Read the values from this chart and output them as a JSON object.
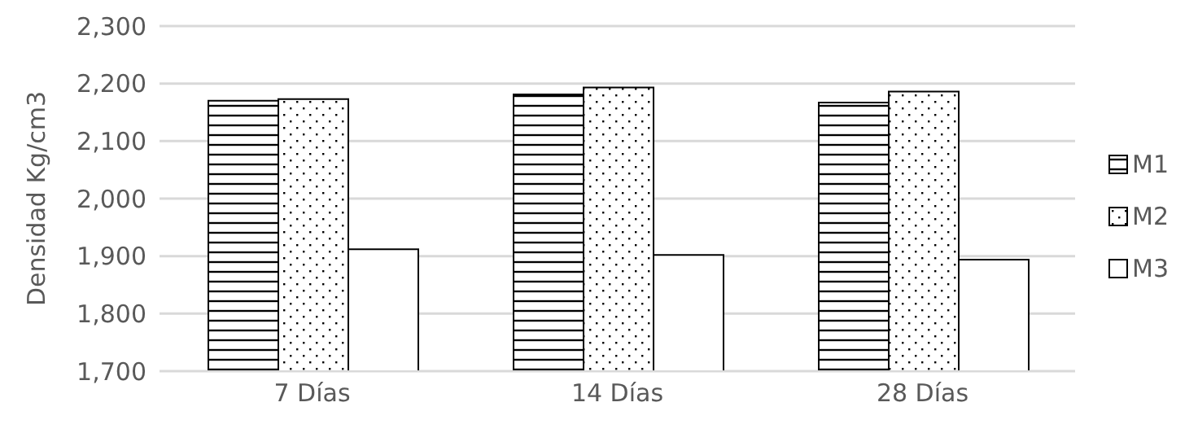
{
  "chart_data": {
    "type": "bar",
    "ylabel": "Densidad Kg/cm3",
    "categories": [
      "7 Días",
      "14 Días",
      "28 Días"
    ],
    "series": [
      {
        "name": "M1",
        "color": "#000000",
        "values": [
          2170,
          2181,
          2167
        ]
      },
      {
        "name": "M2",
        "color": "#000000",
        "values": [
          2173,
          2193,
          2186
        ]
      },
      {
        "name": "M3",
        "color": "#ffffff",
        "values": [
          1912,
          1902,
          1894
        ]
      }
    ],
    "ylim": [
      1700,
      2300
    ],
    "yticks": [
      {
        "value": 1700,
        "label": "1,700"
      },
      {
        "value": 1800,
        "label": "1,800"
      },
      {
        "value": 1900,
        "label": "1,900"
      },
      {
        "value": 2000,
        "label": "2,000"
      },
      {
        "value": 2100,
        "label": "2,100"
      },
      {
        "value": 2200,
        "label": "2,200"
      },
      {
        "value": 2300,
        "label": "2,300"
      }
    ],
    "grid": "y",
    "legend": "right"
  }
}
